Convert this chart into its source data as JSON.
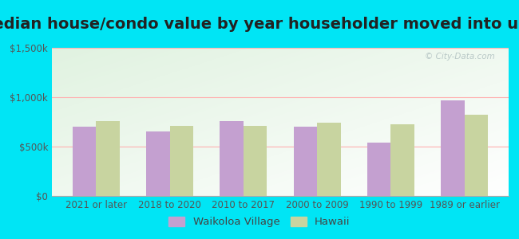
{
  "title": "Median house/condo value by year householder moved into unit",
  "categories": [
    "2021 or later",
    "2018 to 2020",
    "2010 to 2017",
    "2000 to 2009",
    "1990 to 1999",
    "1989 or earlier"
  ],
  "waikoloa": [
    700000,
    650000,
    755000,
    700000,
    540000,
    970000
  ],
  "hawaii": [
    760000,
    710000,
    710000,
    745000,
    725000,
    820000
  ],
  "waikoloa_color": "#c4a0d0",
  "hawaii_color": "#c8d4a0",
  "background_outer": "#00e5f5",
  "ylim": [
    0,
    1500000
  ],
  "yticks": [
    0,
    500000,
    1000000,
    1500000
  ],
  "ytick_labels": [
    "$0",
    "$500k",
    "$1,000k",
    "$1,500k"
  ],
  "watermark": "© City-Data.com",
  "legend_labels": [
    "Waikoloa Village",
    "Hawaii"
  ],
  "title_fontsize": 14,
  "tick_fontsize": 8.5,
  "legend_fontsize": 9.5
}
